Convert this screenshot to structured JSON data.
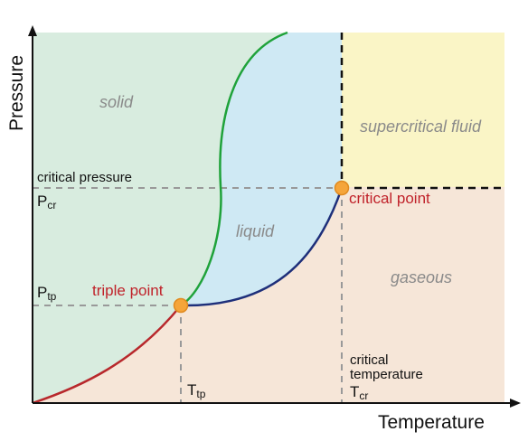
{
  "axes": {
    "x_title": "Temperature",
    "y_title": "Pressure"
  },
  "regions": {
    "solid": "solid",
    "liquid": "liquid",
    "gaseous": "gaseous",
    "supercritical": "supercritical fluid"
  },
  "points": {
    "triple": "triple point",
    "critical": "critical point"
  },
  "annotations": {
    "critical_pressure": "critical pressure",
    "critical_temperature_line1": "critical",
    "critical_temperature_line2": "temperature",
    "p_cr_main": "P",
    "p_cr_sub": "cr",
    "p_tp_main": "P",
    "p_tp_sub": "tp",
    "t_tp_main": "T",
    "t_tp_sub": "tp",
    "t_cr_main": "T",
    "t_cr_sub": "cr"
  },
  "colors": {
    "solid_fill": "#d8ecdf",
    "liquid_fill": "#cfe9f4",
    "gas_fill": "#f6e6d8",
    "supercritical_fill": "#faf5c6",
    "sublimation_curve": "#b8282c",
    "melting_curve": "#1fa23a",
    "vaporization_curve": "#1e2f7a",
    "point_fill": "#f5a53a",
    "point_label": "#c0222a"
  }
}
